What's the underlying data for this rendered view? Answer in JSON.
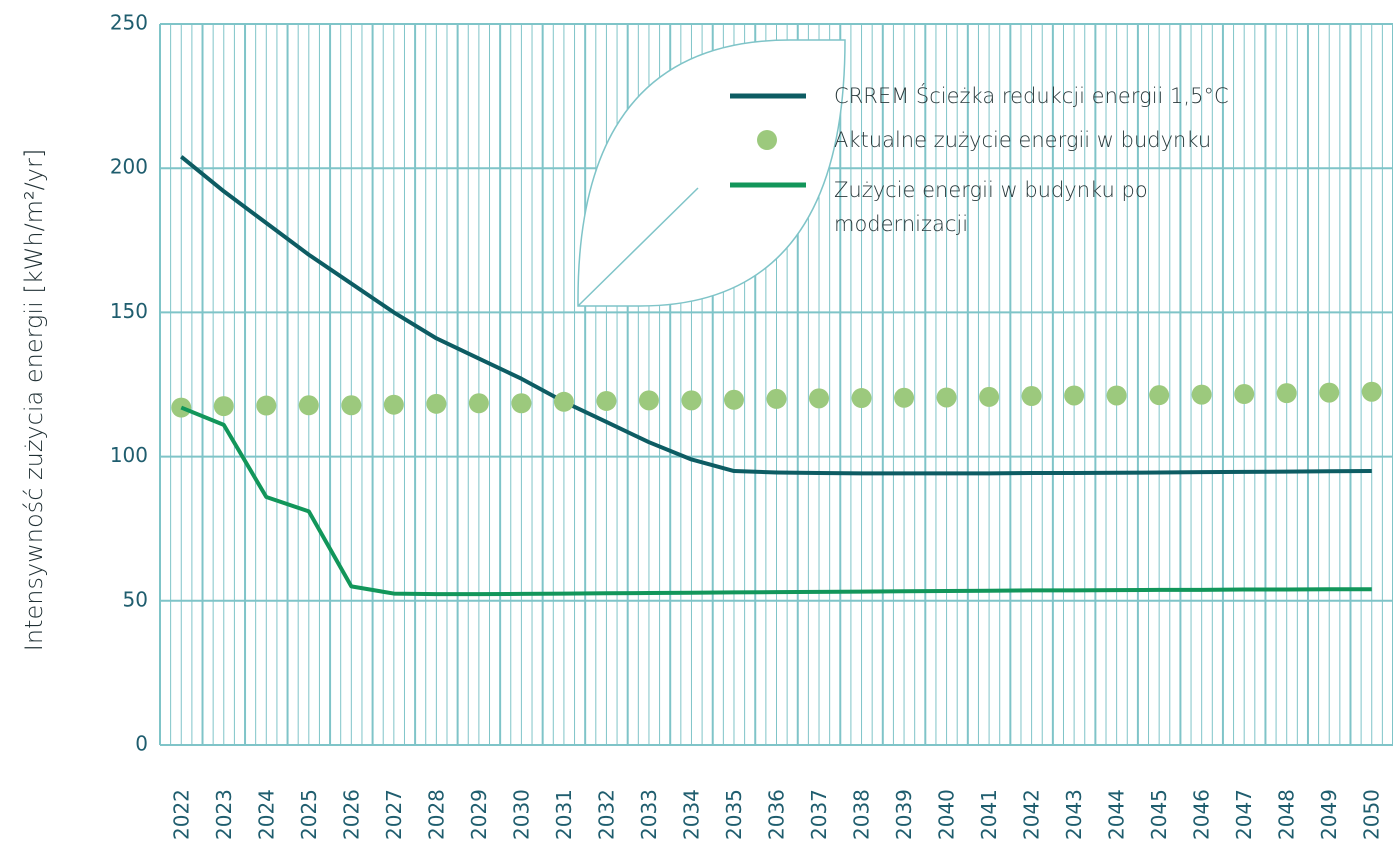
{
  "chart_data": {
    "type": "line",
    "y_label": "Intensywność zużycia energii [kWh/m²/yr]",
    "categories": [
      "2022",
      "2023",
      "2024",
      "2025",
      "2026",
      "2027",
      "2028",
      "2029",
      "2030",
      "2031",
      "2032",
      "2033",
      "2034",
      "2035",
      "2036",
      "2037",
      "2038",
      "2039",
      "2040",
      "2041",
      "2042",
      "2043",
      "2044",
      "2045",
      "2046",
      "2047",
      "2048",
      "2049",
      "2050"
    ],
    "series": [
      {
        "name": "CRREM Ścieżka redukcji energii 1,5°C",
        "color": "#0d5c63",
        "style": "line",
        "values": [
          204,
          192,
          181,
          170,
          160,
          150,
          141,
          134,
          127,
          119,
          112,
          105,
          99,
          95,
          94.5,
          94.3,
          94.2,
          94.2,
          94.2,
          94.2,
          94.3,
          94.3,
          94.4,
          94.5,
          94.6,
          94.7,
          94.8,
          94.9,
          95
        ]
      },
      {
        "name": "Aktualne zużycie energii w budynku",
        "color": "#9cc97d",
        "style": "dots",
        "values": [
          117,
          117.5,
          117.7,
          117.8,
          117.8,
          118,
          118.3,
          118.5,
          118.5,
          119,
          119.3,
          119.5,
          119.5,
          119.7,
          120,
          120.2,
          120.3,
          120.4,
          120.5,
          120.7,
          121,
          121.2,
          121.2,
          121.3,
          121.5,
          121.7,
          122,
          122.2,
          122.5
        ]
      },
      {
        "name": "Zużycie energii w budynku po modernizacji",
        "color": "#12965a",
        "style": "line",
        "values": [
          117,
          111,
          86,
          81,
          55,
          52.5,
          52.3,
          52.3,
          52.4,
          52.5,
          52.6,
          52.7,
          52.8,
          52.9,
          53,
          53.1,
          53.2,
          53.3,
          53.4,
          53.5,
          53.6,
          53.6,
          53.7,
          53.8,
          53.8,
          53.9,
          53.9,
          54,
          54
        ]
      }
    ],
    "ylim": [
      0,
      250
    ],
    "yticks": [
      0,
      50,
      100,
      150,
      200,
      250
    ],
    "grid": true
  }
}
